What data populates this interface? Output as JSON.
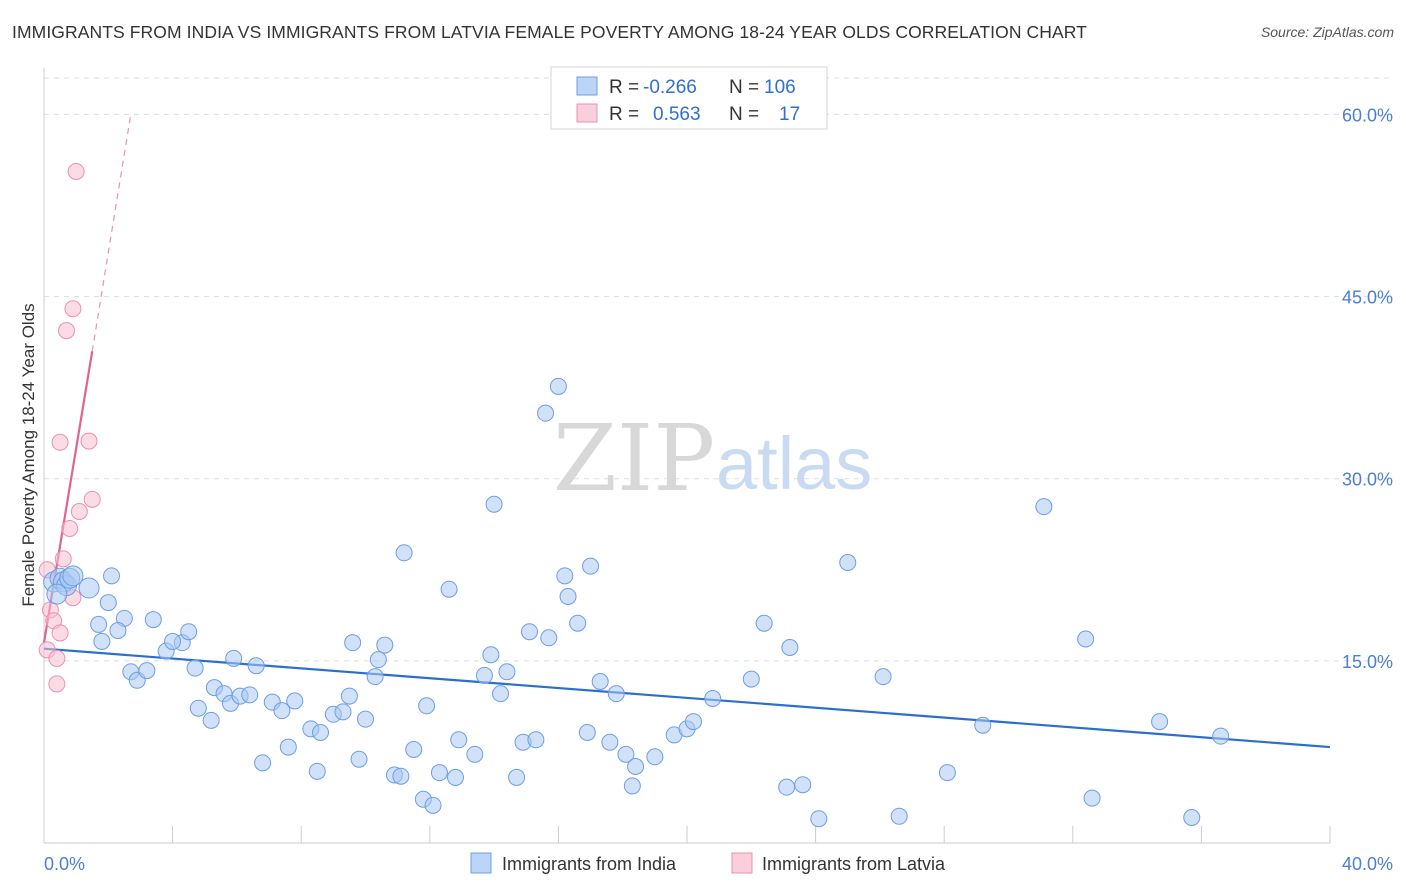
{
  "header": {
    "title": "IMMIGRANTS FROM INDIA VS IMMIGRANTS FROM LATVIA FEMALE POVERTY AMONG 18-24 YEAR OLDS CORRELATION CHART",
    "source": "Source: ZipAtlas.com"
  },
  "watermark": {
    "zip": "ZIP",
    "atlas": "atlas"
  },
  "colors": {
    "india_fill": "#a9c8f3",
    "india_stroke": "#6d9ee6",
    "india_line": "#2a6fce",
    "latvia_fill": "#f7bfd0",
    "latvia_stroke": "#ec8fb0",
    "latvia_line": "#e06392",
    "tick_text": "#4a7fd4",
    "grid": "#dddddd"
  },
  "legend": {
    "rows": [
      {
        "r_label": "R =",
        "r_value": "-0.266",
        "n_label": "N =",
        "n_value": "106"
      },
      {
        "r_label": "R =",
        "r_value": "0.563",
        "n_label": "N =",
        "n_value": "17"
      }
    ]
  },
  "chart_data": {
    "type": "scatter",
    "title": "IMMIGRANTS FROM INDIA VS IMMIGRANTS FROM LATVIA FEMALE POVERTY AMONG 18-24 YEAR OLDS CORRELATION CHART",
    "xlabel": "",
    "ylabel": "Female Poverty Among 18-24 Year Olds",
    "xlim": [
      0,
      40
    ],
    "ylim": [
      0,
      63
    ],
    "x_tick_labels": [
      "0.0%",
      "40.0%"
    ],
    "y_ticks": [
      15,
      30,
      45,
      60
    ],
    "y_tick_labels": [
      "15.0%",
      "30.0%",
      "45.0%",
      "60.0%"
    ],
    "grid": true,
    "legend_placement": "top-center",
    "series": [
      {
        "name": "Immigrants from India",
        "r": -0.266,
        "n": 106,
        "trend": {
          "x0": 0,
          "y0": 16.0,
          "x1": 40,
          "y1": 7.9
        },
        "points": [
          [
            0.3,
            21.5
          ],
          [
            0.5,
            21.8
          ],
          [
            0.6,
            21.5
          ],
          [
            0.7,
            21.2
          ],
          [
            0.8,
            21.8
          ],
          [
            0.9,
            22.0
          ],
          [
            0.4,
            20.5
          ],
          [
            1.4,
            21.0
          ],
          [
            2.1,
            22.0
          ],
          [
            1.7,
            18.0
          ],
          [
            2.0,
            19.8
          ],
          [
            2.5,
            18.5
          ],
          [
            1.8,
            16.6
          ],
          [
            2.3,
            17.5
          ],
          [
            2.7,
            14.1
          ],
          [
            3.4,
            18.4
          ],
          [
            3.8,
            15.8
          ],
          [
            4.3,
            16.5
          ],
          [
            4.0,
            16.6
          ],
          [
            4.5,
            17.4
          ],
          [
            2.9,
            13.4
          ],
          [
            3.2,
            14.2
          ],
          [
            4.7,
            14.4
          ],
          [
            4.8,
            11.1
          ],
          [
            5.2,
            10.1
          ],
          [
            5.3,
            12.8
          ],
          [
            5.6,
            12.3
          ],
          [
            5.8,
            11.5
          ],
          [
            5.9,
            15.2
          ],
          [
            6.1,
            12.1
          ],
          [
            6.4,
            12.2
          ],
          [
            6.6,
            14.6
          ],
          [
            6.8,
            6.6
          ],
          [
            7.1,
            11.6
          ],
          [
            7.4,
            10.9
          ],
          [
            7.6,
            7.9
          ],
          [
            7.8,
            11.7
          ],
          [
            8.3,
            9.4
          ],
          [
            8.5,
            5.9
          ],
          [
            8.6,
            9.1
          ],
          [
            9.0,
            10.6
          ],
          [
            9.3,
            10.8
          ],
          [
            9.5,
            12.1
          ],
          [
            9.6,
            16.5
          ],
          [
            9.8,
            6.9
          ],
          [
            10.0,
            10.2
          ],
          [
            10.3,
            13.7
          ],
          [
            10.4,
            15.1
          ],
          [
            10.6,
            16.3
          ],
          [
            10.9,
            5.6
          ],
          [
            11.1,
            5.5
          ],
          [
            11.2,
            23.9
          ],
          [
            11.5,
            7.7
          ],
          [
            11.8,
            3.6
          ],
          [
            11.9,
            11.3
          ],
          [
            12.1,
            3.1
          ],
          [
            12.3,
            5.8
          ],
          [
            12.6,
            20.9
          ],
          [
            12.8,
            5.4
          ],
          [
            12.9,
            8.5
          ],
          [
            13.4,
            7.3
          ],
          [
            13.7,
            13.8
          ],
          [
            13.9,
            15.5
          ],
          [
            14.0,
            27.9
          ],
          [
            14.2,
            12.3
          ],
          [
            14.4,
            14.1
          ],
          [
            14.7,
            5.4
          ],
          [
            14.9,
            8.3
          ],
          [
            15.1,
            17.4
          ],
          [
            15.3,
            8.5
          ],
          [
            15.6,
            35.4
          ],
          [
            15.7,
            16.9
          ],
          [
            16.0,
            37.6
          ],
          [
            16.2,
            22.0
          ],
          [
            16.3,
            20.3
          ],
          [
            16.6,
            18.1
          ],
          [
            16.9,
            9.1
          ],
          [
            17.0,
            22.8
          ],
          [
            17.3,
            13.3
          ],
          [
            17.6,
            8.3
          ],
          [
            17.8,
            12.3
          ],
          [
            18.1,
            7.3
          ],
          [
            18.3,
            4.7
          ],
          [
            18.4,
            6.3
          ],
          [
            19.0,
            7.1
          ],
          [
            19.6,
            8.9
          ],
          [
            20.0,
            9.4
          ],
          [
            20.2,
            10.0
          ],
          [
            20.8,
            11.9
          ],
          [
            22.0,
            13.5
          ],
          [
            22.4,
            18.1
          ],
          [
            23.1,
            4.6
          ],
          [
            23.2,
            16.1
          ],
          [
            23.6,
            4.8
          ],
          [
            24.1,
            2.0
          ],
          [
            25.0,
            23.1
          ],
          [
            26.1,
            13.7
          ],
          [
            26.6,
            2.2
          ],
          [
            28.1,
            5.8
          ],
          [
            29.2,
            9.7
          ],
          [
            31.1,
            27.7
          ],
          [
            32.4,
            16.8
          ],
          [
            32.6,
            3.7
          ],
          [
            34.7,
            10.0
          ],
          [
            35.7,
            2.1
          ],
          [
            36.6,
            8.8
          ]
        ]
      },
      {
        "name": "Immigrants from Latvia",
        "r": 0.563,
        "n": 17,
        "trend": {
          "x0": 0,
          "y0": 16.5,
          "x1": 1.5,
          "y1": 40.5,
          "dashed_x1": 2.7,
          "dashed_y1": 60.0
        },
        "points": [
          [
            1.0,
            55.3
          ],
          [
            0.9,
            44.0
          ],
          [
            0.7,
            42.2
          ],
          [
            1.4,
            33.1
          ],
          [
            0.5,
            33.0
          ],
          [
            1.5,
            28.3
          ],
          [
            1.1,
            27.3
          ],
          [
            0.8,
            25.9
          ],
          [
            0.6,
            23.4
          ],
          [
            0.1,
            22.5
          ],
          [
            0.9,
            20.2
          ],
          [
            0.2,
            19.2
          ],
          [
            0.3,
            18.3
          ],
          [
            0.5,
            17.3
          ],
          [
            0.1,
            15.9
          ],
          [
            0.4,
            15.2
          ],
          [
            0.4,
            13.1
          ]
        ]
      }
    ]
  }
}
